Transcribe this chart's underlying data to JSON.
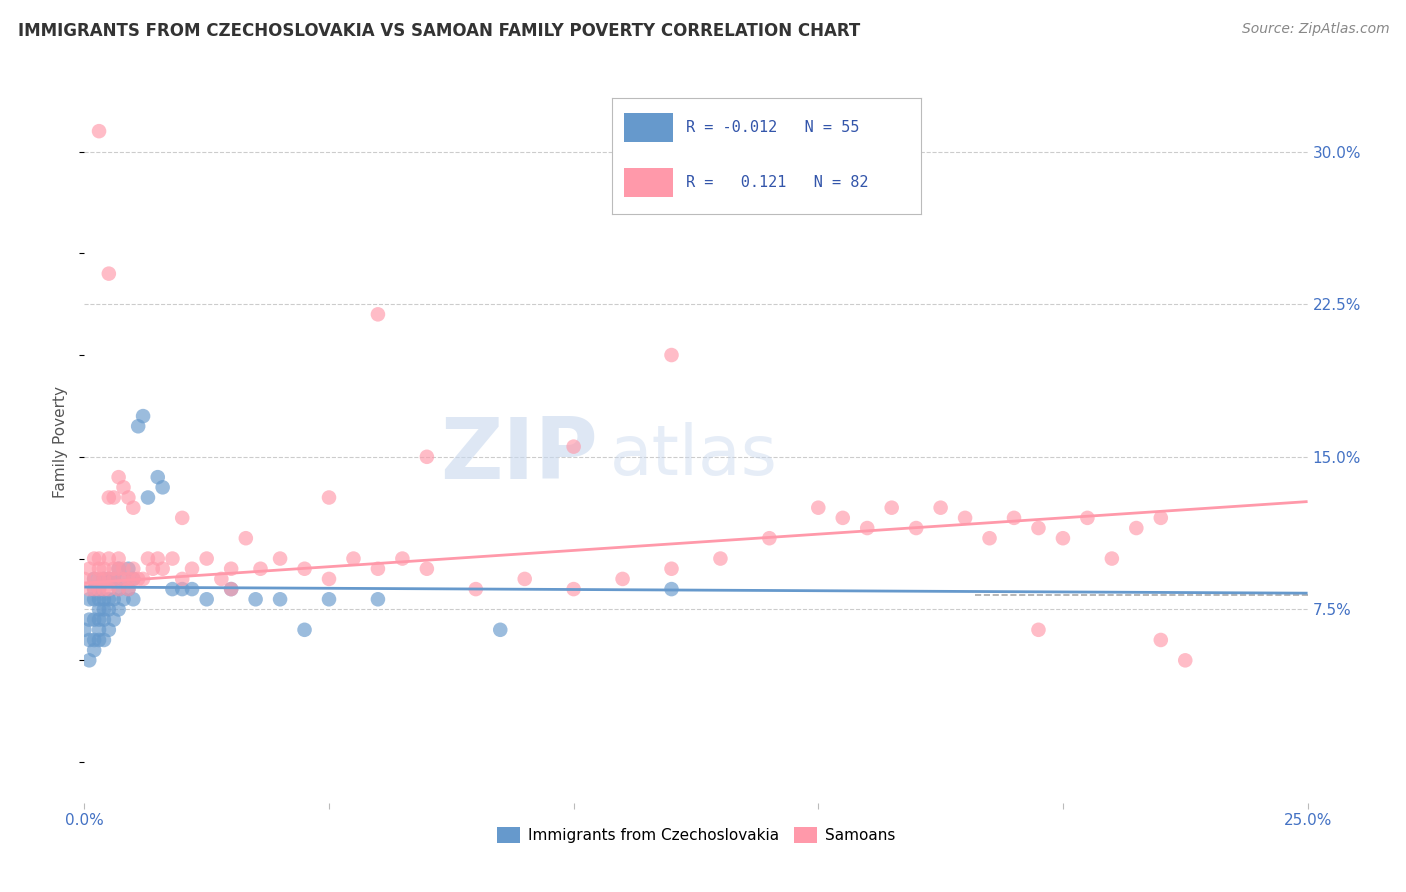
{
  "title": "IMMIGRANTS FROM CZECHOSLOVAKIA VS SAMOAN FAMILY POVERTY CORRELATION CHART",
  "source": "Source: ZipAtlas.com",
  "ylabel": "Family Poverty",
  "ytick_labels": [
    "7.5%",
    "15.0%",
    "22.5%",
    "30.0%"
  ],
  "ytick_values": [
    0.075,
    0.15,
    0.225,
    0.3
  ],
  "xlim": [
    0.0,
    0.25
  ],
  "ylim": [
    -0.02,
    0.335
  ],
  "legend_r_czech": "-0.012",
  "legend_n_czech": "55",
  "legend_r_samoan": "0.121",
  "legend_n_samoan": "82",
  "color_czech": "#6699CC",
  "color_samoan": "#FF99AA",
  "czech_x": [
    0.0,
    0.001,
    0.001,
    0.001,
    0.001,
    0.002,
    0.002,
    0.002,
    0.002,
    0.002,
    0.002,
    0.003,
    0.003,
    0.003,
    0.003,
    0.003,
    0.003,
    0.004,
    0.004,
    0.004,
    0.004,
    0.004,
    0.005,
    0.005,
    0.005,
    0.005,
    0.006,
    0.006,
    0.006,
    0.007,
    0.007,
    0.007,
    0.008,
    0.008,
    0.009,
    0.009,
    0.01,
    0.01,
    0.011,
    0.012,
    0.013,
    0.015,
    0.016,
    0.018,
    0.02,
    0.022,
    0.025,
    0.03,
    0.035,
    0.04,
    0.045,
    0.05,
    0.06,
    0.085,
    0.12
  ],
  "czech_y": [
    0.065,
    0.05,
    0.06,
    0.07,
    0.08,
    0.055,
    0.06,
    0.07,
    0.08,
    0.085,
    0.09,
    0.06,
    0.065,
    0.07,
    0.075,
    0.08,
    0.085,
    0.06,
    0.07,
    0.075,
    0.08,
    0.09,
    0.065,
    0.075,
    0.08,
    0.09,
    0.07,
    0.08,
    0.09,
    0.075,
    0.085,
    0.095,
    0.08,
    0.09,
    0.085,
    0.095,
    0.08,
    0.09,
    0.165,
    0.17,
    0.13,
    0.14,
    0.135,
    0.085,
    0.085,
    0.085,
    0.08,
    0.085,
    0.08,
    0.08,
    0.065,
    0.08,
    0.08,
    0.065,
    0.085
  ],
  "samoan_x": [
    0.0,
    0.001,
    0.001,
    0.002,
    0.002,
    0.002,
    0.003,
    0.003,
    0.003,
    0.003,
    0.004,
    0.004,
    0.004,
    0.005,
    0.005,
    0.005,
    0.006,
    0.006,
    0.007,
    0.007,
    0.007,
    0.008,
    0.008,
    0.009,
    0.009,
    0.01,
    0.01,
    0.011,
    0.012,
    0.013,
    0.014,
    0.015,
    0.016,
    0.018,
    0.02,
    0.022,
    0.025,
    0.028,
    0.03,
    0.033,
    0.036,
    0.04,
    0.045,
    0.05,
    0.055,
    0.06,
    0.065,
    0.07,
    0.08,
    0.09,
    0.1,
    0.11,
    0.12,
    0.13,
    0.14,
    0.155,
    0.16,
    0.165,
    0.17,
    0.175,
    0.18,
    0.185,
    0.19,
    0.195,
    0.2,
    0.205,
    0.21,
    0.215,
    0.22,
    0.225,
    0.005,
    0.006,
    0.007,
    0.008,
    0.009,
    0.01,
    0.02,
    0.03,
    0.05,
    0.07,
    0.1,
    0.15
  ],
  "samoan_y": [
    0.09,
    0.085,
    0.095,
    0.09,
    0.085,
    0.1,
    0.09,
    0.085,
    0.095,
    0.1,
    0.09,
    0.095,
    0.085,
    0.09,
    0.085,
    0.1,
    0.095,
    0.09,
    0.085,
    0.095,
    0.1,
    0.09,
    0.095,
    0.09,
    0.085,
    0.09,
    0.095,
    0.09,
    0.09,
    0.1,
    0.095,
    0.1,
    0.095,
    0.1,
    0.09,
    0.095,
    0.1,
    0.09,
    0.095,
    0.11,
    0.095,
    0.1,
    0.095,
    0.09,
    0.1,
    0.095,
    0.1,
    0.095,
    0.085,
    0.09,
    0.085,
    0.09,
    0.095,
    0.1,
    0.11,
    0.12,
    0.115,
    0.125,
    0.115,
    0.125,
    0.12,
    0.11,
    0.12,
    0.115,
    0.11,
    0.12,
    0.1,
    0.115,
    0.12,
    0.05,
    0.13,
    0.13,
    0.14,
    0.135,
    0.13,
    0.125,
    0.12,
    0.085,
    0.13,
    0.15,
    0.155,
    0.125
  ],
  "samoan_outliers_x": [
    0.003,
    0.005,
    0.06,
    0.12,
    0.195,
    0.22
  ],
  "samoan_outliers_y": [
    0.31,
    0.24,
    0.22,
    0.2,
    0.065,
    0.06
  ]
}
